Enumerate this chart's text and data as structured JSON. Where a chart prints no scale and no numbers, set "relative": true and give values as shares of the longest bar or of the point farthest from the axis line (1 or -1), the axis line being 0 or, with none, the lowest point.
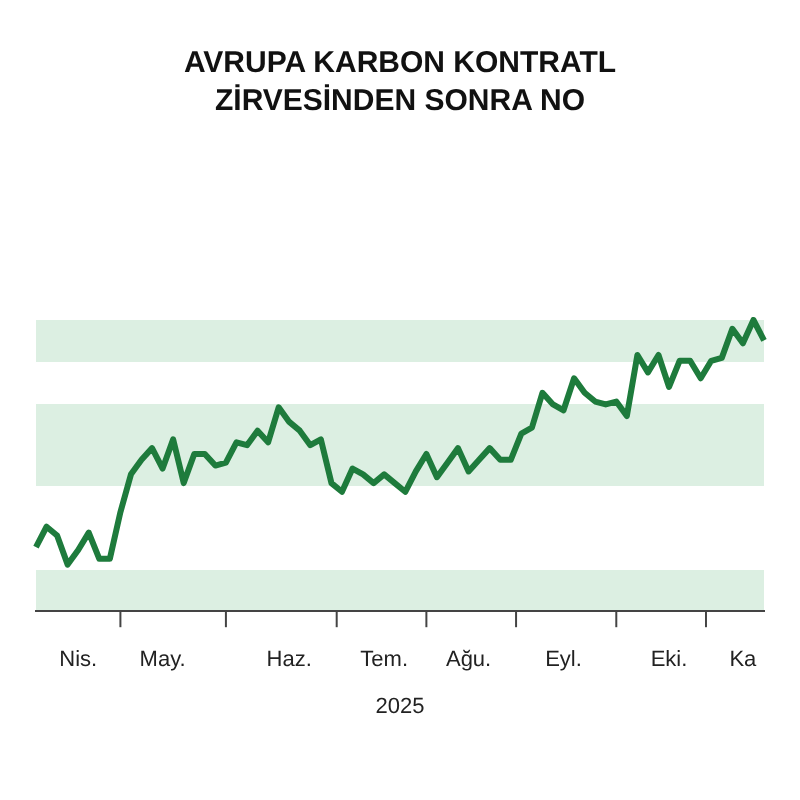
{
  "chart_data": {
    "type": "line",
    "title": "AVRUPA KARBON KONTRATL\nZİRVESİNDEN SONRA NO",
    "xlabel": "2025",
    "relative": true,
    "legend": false,
    "marker": "none",
    "line_style": "solid",
    "categories": [
      null,
      null,
      null,
      null,
      "Nis.",
      null,
      null,
      null,
      null,
      null,
      null,
      null,
      "May.",
      null,
      null,
      null,
      null,
      null,
      null,
      null,
      null,
      null,
      null,
      null,
      "Haz.",
      null,
      null,
      null,
      null,
      null,
      null,
      null,
      null,
      "Tem.",
      null,
      null,
      null,
      null,
      null,
      null,
      null,
      "Ağu.",
      null,
      null,
      null,
      null,
      null,
      null,
      null,
      null,
      "Eyl.",
      null,
      null,
      null,
      null,
      null,
      null,
      null,
      null,
      null,
      "Eki.",
      null,
      null,
      null,
      null,
      null,
      null,
      "Ka",
      null,
      null
    ],
    "series": [
      {
        "color": "#1e7b3c",
        "values": [
          0.22,
          0.29,
          0.26,
          0.16,
          0.21,
          0.27,
          0.18,
          0.18,
          0.34,
          0.47,
          0.52,
          0.56,
          0.49,
          0.59,
          0.44,
          0.54,
          0.54,
          0.5,
          0.51,
          0.58,
          0.57,
          0.62,
          0.58,
          0.7,
          0.65,
          0.62,
          0.57,
          0.59,
          0.44,
          0.41,
          0.49,
          0.47,
          0.44,
          0.47,
          0.44,
          0.41,
          0.48,
          0.54,
          0.46,
          0.51,
          0.56,
          0.48,
          0.52,
          0.56,
          0.52,
          0.52,
          0.61,
          0.63,
          0.75,
          0.71,
          0.69,
          0.8,
          0.75,
          0.72,
          0.71,
          0.72,
          0.67,
          0.88,
          0.82,
          0.88,
          0.77,
          0.86,
          0.86,
          0.8,
          0.86,
          0.87,
          0.97,
          0.92,
          1.0,
          0.93
        ]
      }
    ]
  }
}
